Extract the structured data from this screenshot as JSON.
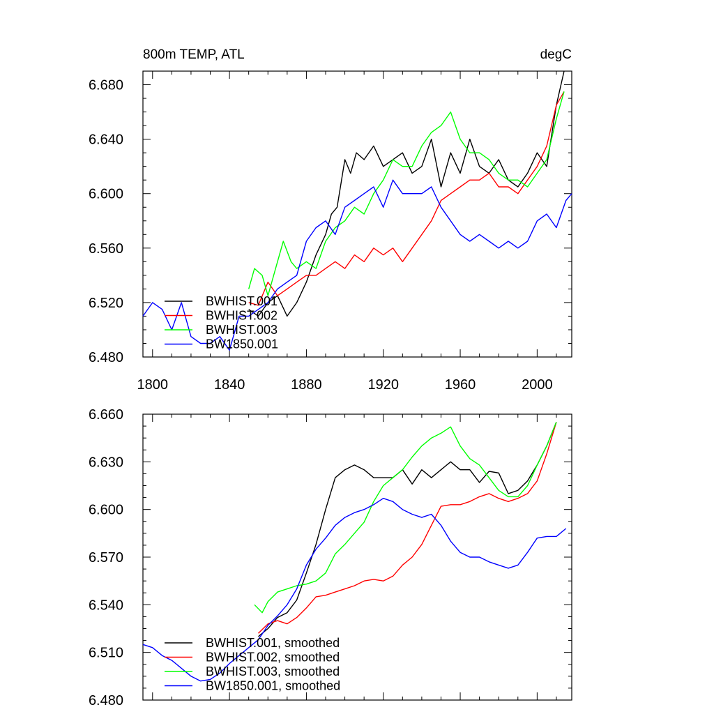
{
  "chart_data": [
    {
      "type": "line",
      "title_left": "800m TEMP, ATL",
      "title_right": "degC",
      "xlim": [
        1795,
        2018
      ],
      "ylim": [
        6.48,
        6.69
      ],
      "xticks": [
        1800,
        1840,
        1880,
        1920,
        1960,
        2000
      ],
      "xtick_labels": [
        "1800",
        "1840",
        "1880",
        "1920",
        "1960",
        "2000"
      ],
      "yticks": [
        6.48,
        6.52,
        6.56,
        6.6,
        6.64,
        6.68
      ],
      "ytick_labels": [
        "6.480",
        "6.520",
        "6.560",
        "6.600",
        "6.640",
        "6.680"
      ],
      "legend": "bottom-left",
      "series": [
        {
          "name": "BWHIST.001",
          "color": "#000000",
          "x": [
            1850,
            1855,
            1860,
            1865,
            1870,
            1875,
            1880,
            1885,
            1890,
            1893,
            1896,
            1900,
            1903,
            1906,
            1910,
            1915,
            1920,
            1925,
            1930,
            1935,
            1940,
            1945,
            1950,
            1955,
            1960,
            1965,
            1970,
            1975,
            1980,
            1985,
            1990,
            1995,
            2000,
            2005,
            2010,
            2014
          ],
          "y": [
            6.515,
            6.51,
            6.52,
            6.525,
            6.51,
            6.52,
            6.535,
            6.555,
            6.57,
            6.585,
            6.59,
            6.625,
            6.615,
            6.63,
            6.625,
            6.635,
            6.62,
            6.625,
            6.63,
            6.615,
            6.62,
            6.64,
            6.605,
            6.63,
            6.615,
            6.64,
            6.62,
            6.615,
            6.625,
            6.61,
            6.605,
            6.615,
            6.63,
            6.62,
            6.665,
            6.69
          ]
        },
        {
          "name": "BWHIST.002",
          "color": "#ff0000",
          "x": [
            1850,
            1855,
            1860,
            1865,
            1870,
            1875,
            1880,
            1885,
            1890,
            1895,
            1900,
            1905,
            1910,
            1915,
            1920,
            1925,
            1930,
            1935,
            1940,
            1945,
            1950,
            1955,
            1960,
            1965,
            1970,
            1975,
            1980,
            1985,
            1990,
            1995,
            2000,
            2005,
            2010,
            2014
          ],
          "y": [
            6.52,
            6.518,
            6.535,
            6.525,
            6.53,
            6.535,
            6.54,
            6.54,
            6.545,
            6.55,
            6.545,
            6.555,
            6.55,
            6.56,
            6.555,
            6.56,
            6.55,
            6.56,
            6.57,
            6.58,
            6.595,
            6.6,
            6.605,
            6.61,
            6.61,
            6.615,
            6.605,
            6.605,
            6.6,
            6.61,
            6.62,
            6.635,
            6.665,
            6.675
          ]
        },
        {
          "name": "BWHIST.003",
          "color": "#00ff00",
          "x": [
            1850,
            1853,
            1857,
            1860,
            1865,
            1868,
            1872,
            1875,
            1880,
            1885,
            1890,
            1895,
            1900,
            1905,
            1910,
            1915,
            1920,
            1925,
            1930,
            1935,
            1940,
            1945,
            1950,
            1955,
            1960,
            1965,
            1970,
            1975,
            1980,
            1985,
            1990,
            1995,
            2000,
            2005,
            2010,
            2014
          ],
          "y": [
            6.53,
            6.545,
            6.54,
            6.525,
            6.55,
            6.565,
            6.55,
            6.545,
            6.55,
            6.545,
            6.565,
            6.575,
            6.58,
            6.59,
            6.585,
            6.6,
            6.61,
            6.625,
            6.62,
            6.62,
            6.635,
            6.645,
            6.65,
            6.66,
            6.64,
            6.63,
            6.63,
            6.625,
            6.615,
            6.61,
            6.61,
            6.605,
            6.615,
            6.625,
            6.655,
            6.675
          ]
        },
        {
          "name": "BW1850.001",
          "color": "#0000ff",
          "x": [
            1795,
            1800,
            1805,
            1810,
            1815,
            1820,
            1825,
            1830,
            1835,
            1840,
            1845,
            1850,
            1855,
            1860,
            1865,
            1870,
            1875,
            1880,
            1885,
            1890,
            1895,
            1900,
            1905,
            1910,
            1915,
            1920,
            1925,
            1930,
            1935,
            1940,
            1945,
            1950,
            1955,
            1960,
            1965,
            1970,
            1975,
            1980,
            1985,
            1990,
            1995,
            2000,
            2005,
            2010,
            2015,
            2018
          ],
          "y": [
            6.51,
            6.52,
            6.515,
            6.5,
            6.52,
            6.495,
            6.49,
            6.49,
            6.495,
            6.485,
            6.51,
            6.51,
            6.515,
            6.52,
            6.53,
            6.535,
            6.54,
            6.565,
            6.575,
            6.58,
            6.57,
            6.59,
            6.595,
            6.6,
            6.605,
            6.59,
            6.61,
            6.6,
            6.6,
            6.6,
            6.605,
            6.59,
            6.58,
            6.57,
            6.565,
            6.57,
            6.565,
            6.56,
            6.565,
            6.56,
            6.565,
            6.58,
            6.585,
            6.575,
            6.595,
            6.6
          ]
        }
      ]
    },
    {
      "type": "line",
      "xlim": [
        1795,
        2018
      ],
      "ylim": [
        6.48,
        6.66
      ],
      "xticks": [
        1800,
        1840,
        1880,
        1920,
        1960,
        2000
      ],
      "yticks": [
        6.48,
        6.51,
        6.54,
        6.57,
        6.6,
        6.63,
        6.66
      ],
      "ytick_labels": [
        "6.480",
        "6.510",
        "6.540",
        "6.570",
        "6.600",
        "6.630",
        "6.660"
      ],
      "legend": "bottom-left",
      "series": [
        {
          "name": "BWHIST.001, smoothed",
          "color": "#000000",
          "x": [
            1855,
            1860,
            1865,
            1870,
            1875,
            1880,
            1885,
            1890,
            1895,
            1900,
            1905,
            1910,
            1915,
            1920,
            1925,
            1930,
            1935,
            1940,
            1945,
            1950,
            1955,
            1960,
            1965,
            1970,
            1975,
            1980,
            1985,
            1990,
            1995,
            2000,
            2005,
            2010
          ],
          "y": [
            6.52,
            6.525,
            6.532,
            6.535,
            6.543,
            6.56,
            6.578,
            6.6,
            6.62,
            6.625,
            6.628,
            6.625,
            6.62,
            6.62,
            6.62,
            6.625,
            6.616,
            6.625,
            6.62,
            6.625,
            6.63,
            6.625,
            6.625,
            6.617,
            6.624,
            6.623,
            6.61,
            6.612,
            6.618,
            6.628,
            6.64,
            6.655
          ]
        },
        {
          "name": "BWHIST.002, smoothed",
          "color": "#ff0000",
          "x": [
            1855,
            1860,
            1865,
            1870,
            1875,
            1880,
            1885,
            1890,
            1895,
            1900,
            1905,
            1910,
            1915,
            1920,
            1925,
            1930,
            1935,
            1940,
            1945,
            1950,
            1955,
            1960,
            1965,
            1970,
            1975,
            1980,
            1985,
            1990,
            1995,
            2000,
            2005,
            2010
          ],
          "y": [
            6.522,
            6.528,
            6.53,
            6.528,
            6.532,
            6.538,
            6.545,
            6.546,
            6.548,
            6.55,
            6.552,
            6.555,
            6.556,
            6.555,
            6.558,
            6.565,
            6.57,
            6.578,
            6.59,
            6.602,
            6.603,
            6.603,
            6.605,
            6.608,
            6.61,
            6.607,
            6.605,
            6.607,
            6.61,
            6.618,
            6.635,
            6.655
          ]
        },
        {
          "name": "BWHIST.003, smoothed",
          "color": "#00ff00",
          "x": [
            1853,
            1857,
            1860,
            1865,
            1870,
            1875,
            1880,
            1885,
            1890,
            1895,
            1900,
            1905,
            1910,
            1915,
            1920,
            1925,
            1930,
            1935,
            1940,
            1945,
            1950,
            1955,
            1960,
            1965,
            1970,
            1975,
            1980,
            1985,
            1990,
            1995,
            2000,
            2005,
            2010
          ],
          "y": [
            6.54,
            6.535,
            6.542,
            6.548,
            6.55,
            6.552,
            6.553,
            6.555,
            6.56,
            6.572,
            6.578,
            6.585,
            6.592,
            6.605,
            6.615,
            6.62,
            6.625,
            6.633,
            6.64,
            6.645,
            6.648,
            6.652,
            6.64,
            6.632,
            6.628,
            6.62,
            6.612,
            6.608,
            6.608,
            6.615,
            6.628,
            6.64,
            6.655
          ]
        },
        {
          "name": "BW1850.001, smoothed",
          "color": "#0000ff",
          "x": [
            1795,
            1800,
            1805,
            1810,
            1815,
            1820,
            1825,
            1830,
            1835,
            1840,
            1845,
            1850,
            1855,
            1860,
            1865,
            1870,
            1875,
            1880,
            1885,
            1890,
            1895,
            1900,
            1905,
            1910,
            1915,
            1920,
            1925,
            1930,
            1935,
            1940,
            1945,
            1950,
            1955,
            1960,
            1965,
            1970,
            1975,
            1980,
            1985,
            1990,
            1995,
            2000,
            2005,
            2010,
            2015
          ],
          "y": [
            6.515,
            6.513,
            6.508,
            6.505,
            6.5,
            6.495,
            6.492,
            6.493,
            6.497,
            6.503,
            6.508,
            6.513,
            6.518,
            6.527,
            6.533,
            6.54,
            6.55,
            6.565,
            6.575,
            6.582,
            6.59,
            6.595,
            6.598,
            6.6,
            6.603,
            6.607,
            6.605,
            6.6,
            6.597,
            6.595,
            6.597,
            6.59,
            6.58,
            6.573,
            6.57,
            6.57,
            6.567,
            6.565,
            6.563,
            6.565,
            6.573,
            6.582,
            6.583,
            6.583,
            6.588
          ]
        }
      ]
    }
  ]
}
